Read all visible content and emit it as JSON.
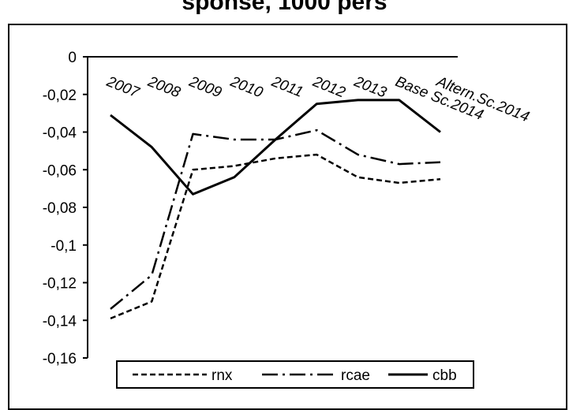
{
  "chart_data": {
    "type": "line",
    "title": "sponse, 1000 pers",
    "categories": [
      "2007",
      "2008",
      "2009",
      "2010",
      "2011",
      "2012",
      "2013",
      "Base Sc.2014",
      "Altern.Sc.2014"
    ],
    "series": [
      {
        "name": "rnx",
        "values": [
          -0.139,
          -0.13,
          -0.06,
          -0.058,
          -0.054,
          -0.052,
          -0.064,
          -0.067,
          -0.065
        ]
      },
      {
        "name": "rcae",
        "values": [
          -0.134,
          -0.116,
          -0.041,
          -0.044,
          -0.044,
          -0.039,
          -0.052,
          -0.057,
          -0.056
        ]
      },
      {
        "name": "cbb",
        "values": [
          -0.031,
          -0.048,
          -0.073,
          -0.064,
          -0.044,
          -0.025,
          -0.023,
          -0.023,
          -0.04
        ]
      }
    ],
    "yticks": [
      "0",
      "-0,02",
      "-0,04",
      "-0,06",
      "-0,08",
      "-0,1",
      "-0,12",
      "-0,14",
      "-0,16"
    ],
    "ylim": [
      -0.16,
      0
    ],
    "xlabel": "",
    "ylabel": "",
    "grid": false,
    "legend_position": "bottom",
    "colors": {
      "lines": "#000000",
      "background": "#ffffff"
    }
  }
}
